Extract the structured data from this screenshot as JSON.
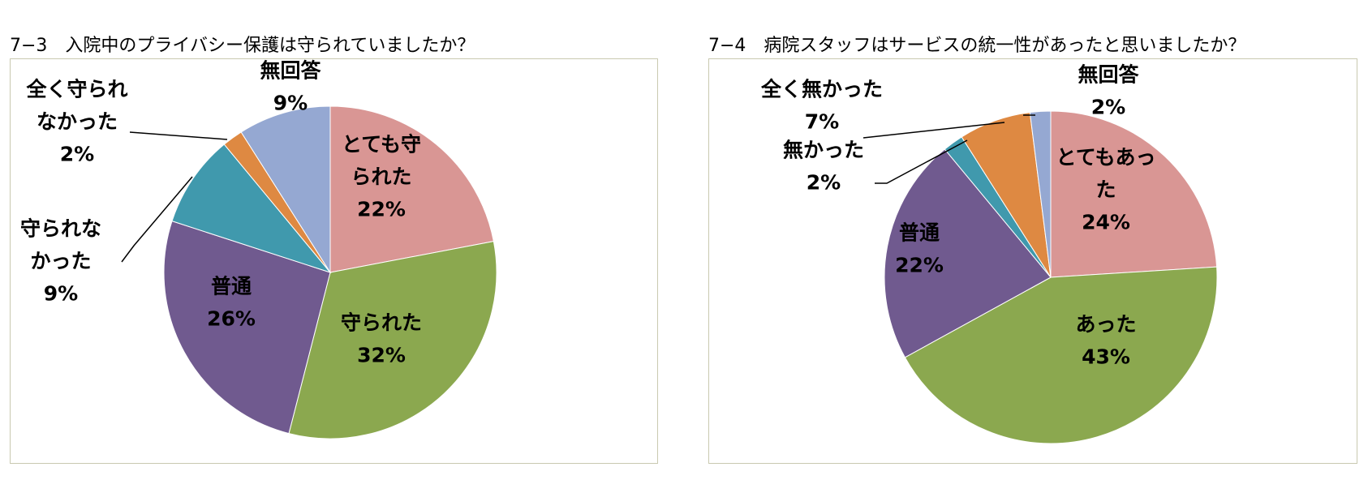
{
  "chart_data": [
    {
      "type": "pie",
      "title": "7−3　入院中のプライバシー保護は守られていましたか？",
      "categories": [
        "とても守られた",
        "守られた",
        "普通",
        "守られなかった",
        "全く守られなかった",
        "無回答"
      ],
      "values": [
        22,
        32,
        26,
        9,
        2,
        9
      ],
      "unit": "%",
      "colors": [
        "#d99694",
        "#8ba84f",
        "#705a8f",
        "#4099ad",
        "#de8942",
        "#95a8d2"
      ],
      "labels": [
        {
          "lines": [
            "とても守",
            "られた",
            "22%"
          ]
        },
        {
          "lines": [
            "守られた",
            "32%"
          ]
        },
        {
          "lines": [
            "普通",
            "26%"
          ]
        },
        {
          "lines": [
            "守られな",
            "かった",
            "9%"
          ]
        },
        {
          "lines": [
            "全く守られ",
            "なかった",
            "2%"
          ]
        },
        {
          "lines": [
            "無回答",
            "9%"
          ]
        }
      ]
    },
    {
      "type": "pie",
      "title": "7−4　病院スタッフはサービスの統一性があったと思いましたか？",
      "categories": [
        "とてもあった",
        "あった",
        "普通",
        "無かった",
        "全く無かった",
        "無回答"
      ],
      "values": [
        24,
        43,
        22,
        2,
        7,
        2
      ],
      "unit": "%",
      "colors": [
        "#d99694",
        "#8ba84f",
        "#705a8f",
        "#4099ad",
        "#de8942",
        "#95a8d2"
      ],
      "labels": [
        {
          "lines": [
            "とてもあっ",
            "た",
            "24%"
          ]
        },
        {
          "lines": [
            "あった",
            "43%"
          ]
        },
        {
          "lines": [
            "普通",
            "22%"
          ]
        },
        {
          "lines": [
            "無かった",
            "2%"
          ]
        },
        {
          "lines": [
            "全く無かった",
            "7%"
          ]
        },
        {
          "lines": [
            "無回答",
            "2%"
          ]
        }
      ]
    }
  ]
}
